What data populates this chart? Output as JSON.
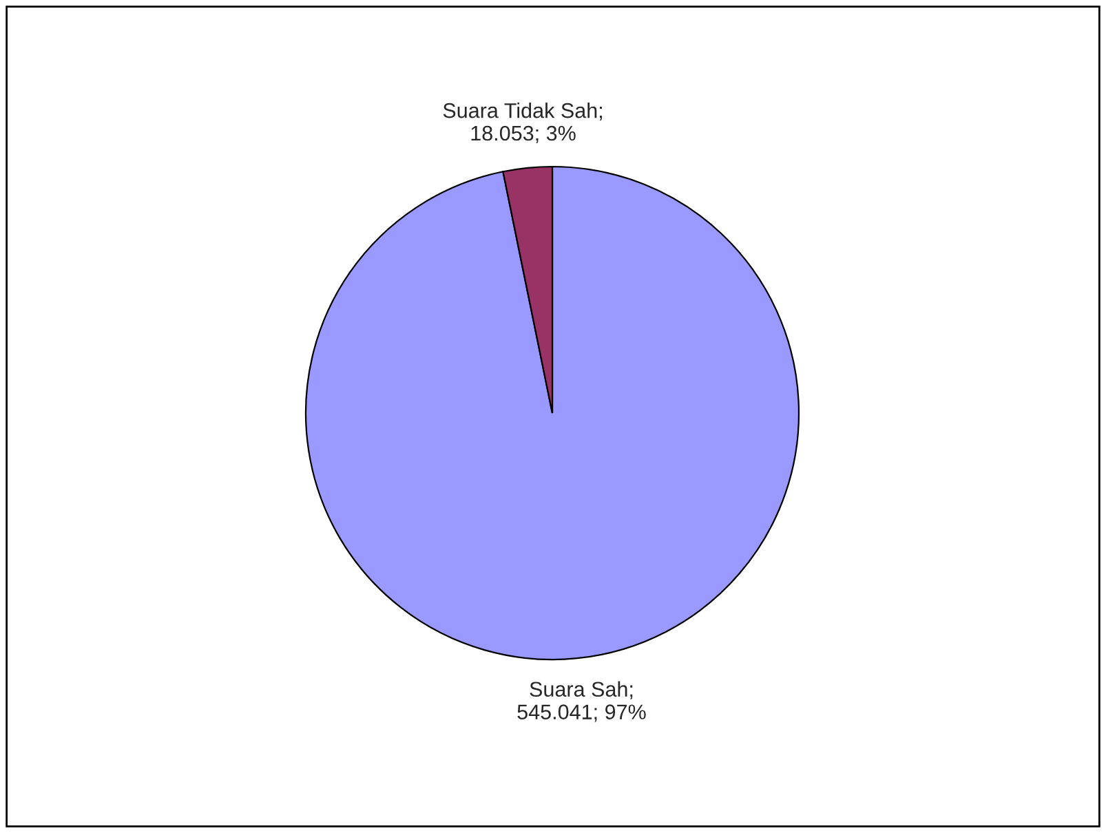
{
  "chart_data": {
    "type": "pie",
    "categories": [
      "Suara Sah",
      "Suara Tidak Sah"
    ],
    "values": [
      545041,
      18053
    ],
    "value_labels": [
      "; 545.041; 97%",
      "; 18.053; 3%"
    ],
    "colors": [
      "#9999ff",
      "#993366"
    ],
    "legend": false
  }
}
